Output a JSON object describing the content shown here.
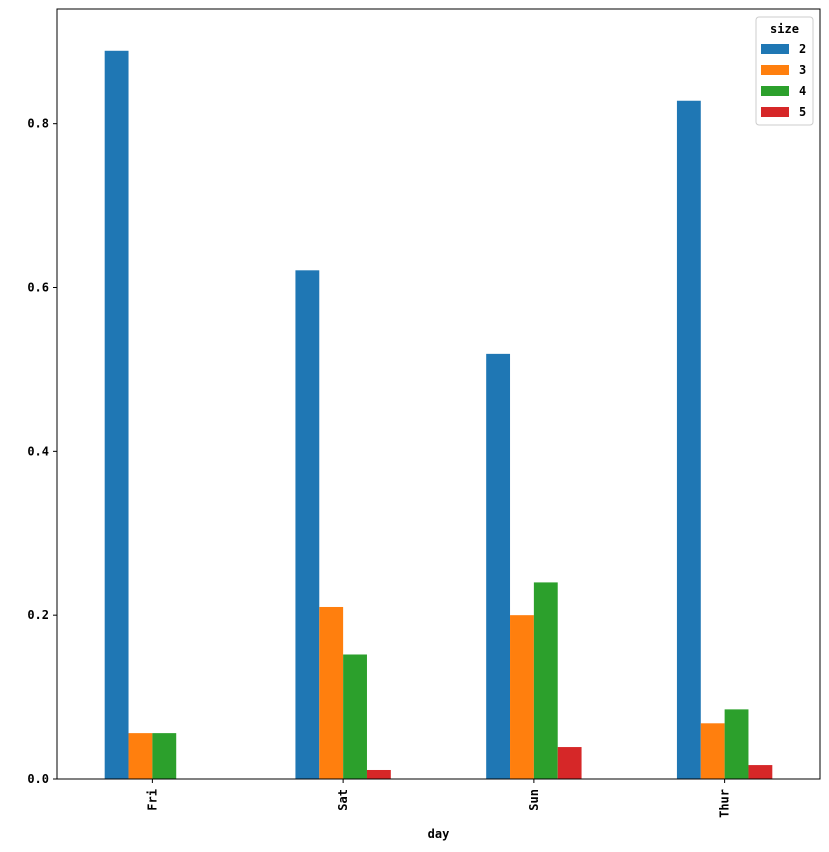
{
  "chart_data": {
    "type": "bar",
    "title": "",
    "xlabel": "day",
    "ylabel": "",
    "categories": [
      "Fri",
      "Sat",
      "Sun",
      "Thur"
    ],
    "ylim": [
      0,
      0.94
    ],
    "yticks": [
      "0.0",
      "0.2",
      "0.4",
      "0.6",
      "0.8"
    ],
    "grid": false,
    "legend": {
      "title": "size",
      "placement": "top-right"
    },
    "series": [
      {
        "name": "2",
        "color": "#1f77b4",
        "values": [
          0.889,
          0.621,
          0.519,
          0.828
        ]
      },
      {
        "name": "3",
        "color": "#ff7f0e",
        "values": [
          0.056,
          0.21,
          0.2,
          0.068
        ]
      },
      {
        "name": "4",
        "color": "#2ca02c",
        "values": [
          0.056,
          0.152,
          0.24,
          0.085
        ]
      },
      {
        "name": "5",
        "color": "#d62728",
        "values": [
          0.0,
          0.011,
          0.039,
          0.017
        ]
      }
    ]
  }
}
